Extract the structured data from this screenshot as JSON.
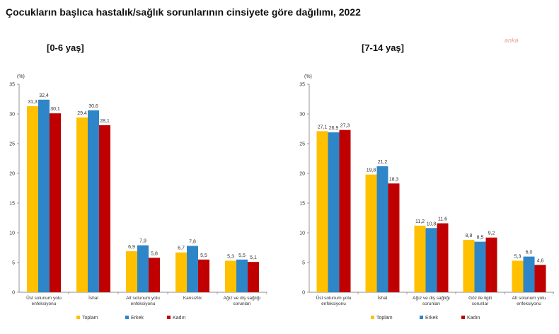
{
  "title": "Çocukların başlıca hastalık/sağlık sorunlarının cinsiyete göre dağılımı, 2022",
  "watermark": "anka",
  "colors": {
    "Toplam": "#FFC000",
    "Erkek": "#2E86C8",
    "Kadın": "#C00000"
  },
  "legend": [
    "Toplam",
    "Erkek",
    "Kadın"
  ],
  "chart_data": [
    {
      "type": "bar",
      "title": "[0-6 yaş]",
      "ylabel": "(%)",
      "ylim": [
        0,
        35
      ],
      "yticks": [
        "0",
        "5",
        "10",
        "15",
        "20",
        "25",
        "30",
        "35"
      ],
      "categories": [
        [
          "Üst solunum yolu",
          "enfeksiyonu"
        ],
        [
          "İshal"
        ],
        [
          "Alt solunum yolu",
          "enfeksiyonu"
        ],
        [
          "Kansızlık"
        ],
        [
          "Ağız ve diş sağlığı",
          "sorunları"
        ]
      ],
      "series": [
        {
          "name": "Toplam",
          "values": [
            31.3,
            29.4,
            6.9,
            6.7,
            5.3
          ],
          "labels": [
            "31,3",
            "29,4",
            "6,9",
            "6,7",
            "5,3"
          ]
        },
        {
          "name": "Erkek",
          "values": [
            32.4,
            30.6,
            7.9,
            7.8,
            5.5
          ],
          "labels": [
            "32,4",
            "30,6",
            "7,9",
            "7,8",
            "5,5"
          ]
        },
        {
          "name": "Kadın",
          "values": [
            30.1,
            28.1,
            5.8,
            5.5,
            5.1
          ],
          "labels": [
            "30,1",
            "28,1",
            "5,8",
            "5,5",
            "5,1"
          ]
        }
      ]
    },
    {
      "type": "bar",
      "title": "[7-14 yaş]",
      "ylabel": "(%)",
      "ylim": [
        0,
        35
      ],
      "yticks": [
        "0",
        "5",
        "10",
        "15",
        "20",
        "25",
        "30",
        "35"
      ],
      "categories": [
        [
          "Üst solunum yolu",
          "enfeksiyonu"
        ],
        [
          "İshal"
        ],
        [
          "Ağız ve diş sağlığı",
          "sorunları"
        ],
        [
          "Göz ile ilgili",
          "sorunlar"
        ],
        [
          "Alt solunum yolu",
          "enfeksiyonu"
        ]
      ],
      "series": [
        {
          "name": "Toplam",
          "values": [
            27.1,
            19.8,
            11.2,
            8.8,
            5.3
          ],
          "labels": [
            "27,1",
            "19,8",
            "11,2",
            "8,8",
            "5,3"
          ]
        },
        {
          "name": "Erkek",
          "values": [
            26.9,
            21.2,
            10.8,
            8.5,
            6.0
          ],
          "labels": [
            "26,9",
            "21,2",
            "10,8",
            "8,5",
            "6,0"
          ]
        },
        {
          "name": "Kadın",
          "values": [
            27.3,
            18.3,
            11.6,
            9.2,
            4.6
          ],
          "labels": [
            "27,3",
            "18,3",
            "11,6",
            "9,2",
            "4,6"
          ]
        }
      ]
    }
  ]
}
